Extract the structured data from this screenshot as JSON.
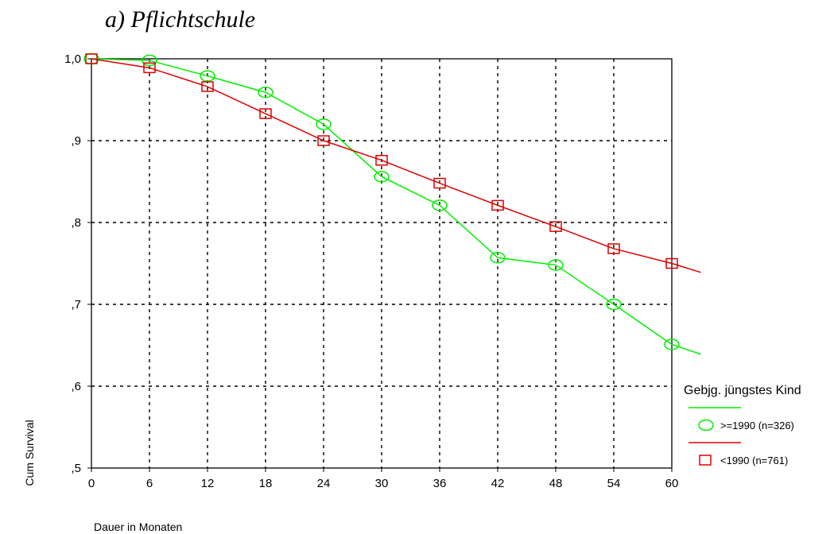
{
  "chart_data": {
    "type": "line",
    "title": "a) Pflichtschule",
    "xlabel": "Dauer in Monaten",
    "ylabel": "Cum Survival",
    "xlim": [
      0,
      60
    ],
    "ylim": [
      0.5,
      1.0
    ],
    "xticks": [
      0,
      6,
      12,
      18,
      24,
      30,
      36,
      42,
      48,
      54,
      60
    ],
    "xtick_labels": [
      "0",
      "6",
      "12",
      "18",
      "24",
      "30",
      "36",
      "42",
      "48",
      "54",
      "60"
    ],
    "yticks": [
      0.5,
      0.6,
      0.7,
      0.8,
      0.9,
      1.0
    ],
    "ytick_labels": [
      ",5",
      ",6",
      ",7",
      ",8",
      ",9",
      "1,0"
    ],
    "grid": true,
    "legend": {
      "title": "Gebjg. jüngstes Kind",
      "placement": "right"
    },
    "series": [
      {
        "name": ">=1990 (n=326)",
        "color": "#00ee00",
        "marker": "circle",
        "x": [
          0,
          6,
          12,
          18,
          24,
          30,
          36,
          42,
          48,
          54,
          60
        ],
        "y": [
          1.0,
          0.998,
          0.979,
          0.959,
          0.92,
          0.856,
          0.821,
          0.757,
          0.748,
          0.7,
          0.651
        ],
        "line_end": [
          63,
          0.639
        ]
      },
      {
        "name": "<1990 (n=761)",
        "color": "#dd0000",
        "marker": "square",
        "x": [
          0,
          6,
          12,
          18,
          24,
          30,
          36,
          42,
          48,
          54,
          60
        ],
        "y": [
          1.0,
          0.989,
          0.966,
          0.933,
          0.9,
          0.876,
          0.848,
          0.821,
          0.795,
          0.768,
          0.75
        ],
        "line_end": [
          63,
          0.739
        ]
      }
    ]
  }
}
